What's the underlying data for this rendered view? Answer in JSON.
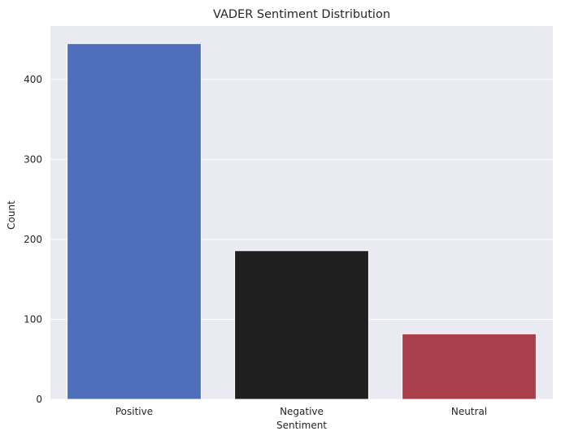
{
  "chart_data": {
    "type": "bar",
    "title": "VADER Sentiment Distribution",
    "xlabel": "Sentiment",
    "ylabel": "Count",
    "categories": [
      "Positive",
      "Negative",
      "Neutral"
    ],
    "values": [
      445,
      186,
      82
    ],
    "colors": [
      "#4f6fbd",
      "#1f1f1f",
      "#a83f4a"
    ],
    "ylim": [
      0,
      467
    ],
    "yticks": [
      0,
      100,
      200,
      300,
      400
    ],
    "grid": true,
    "background": "#eaeaf2",
    "legend": "none"
  }
}
